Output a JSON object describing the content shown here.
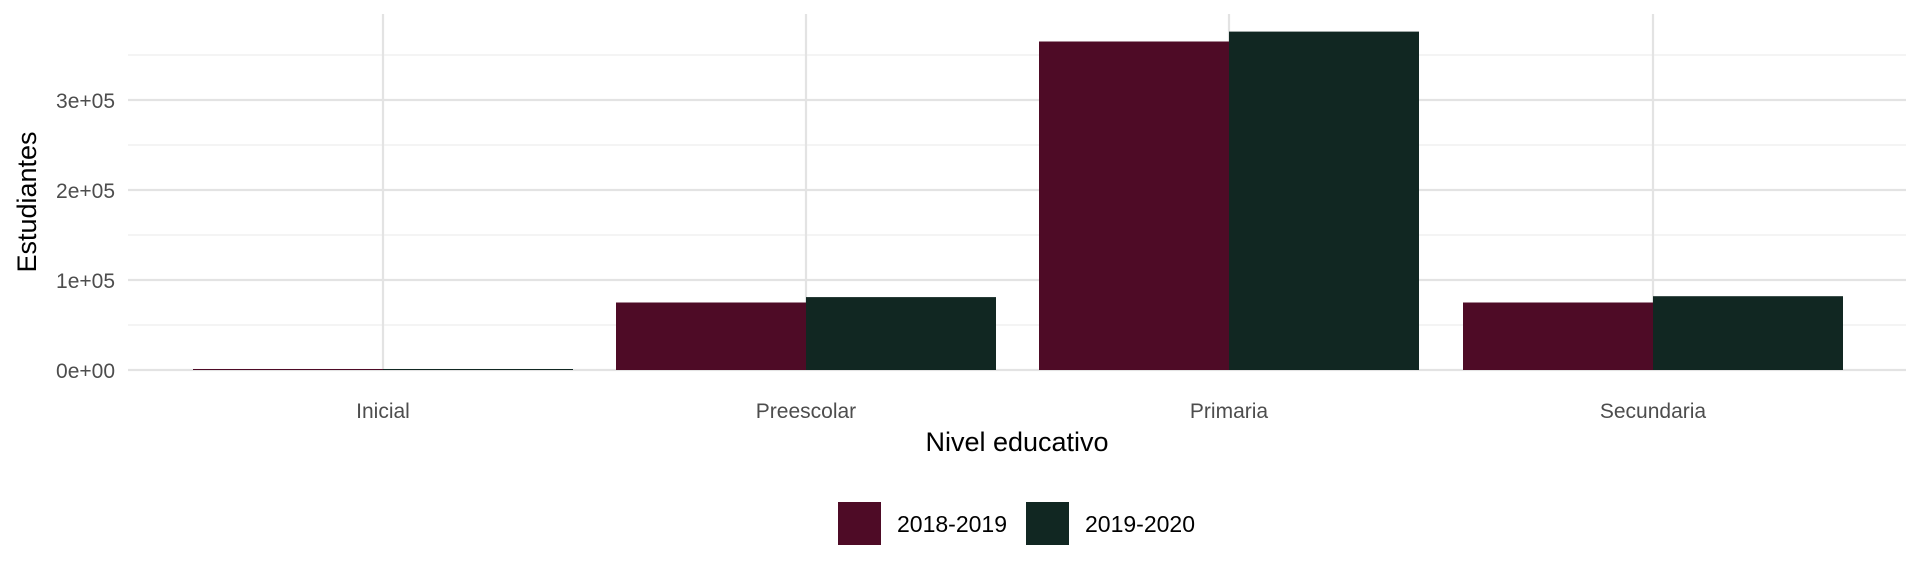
{
  "chart_data": {
    "type": "bar",
    "title": "",
    "xlabel": "Nivel educativo",
    "ylabel": "Estudiantes",
    "categories": [
      "Inicial",
      "Preescolar",
      "Primaria",
      "Secundaria"
    ],
    "series": [
      {
        "name": "2018-2019",
        "color": "#4e0b26",
        "values": [
          700,
          75000,
          365000,
          75000
        ]
      },
      {
        "name": "2019-2020",
        "color": "#112722",
        "values": [
          800,
          81000,
          376000,
          82000
        ]
      }
    ],
    "ylim": [
      0,
      390000
    ],
    "yticks": [
      0,
      100000,
      200000,
      300000
    ],
    "ytick_labels": [
      "0e+00",
      "1e+05",
      "2e+05",
      "3e+05"
    ],
    "grid": true,
    "legend_position": "bottom"
  }
}
